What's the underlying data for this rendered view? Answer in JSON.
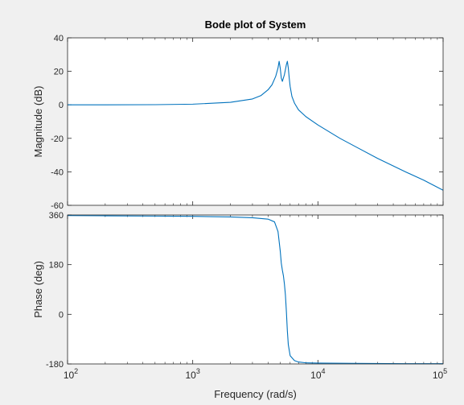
{
  "chart_data": [
    {
      "type": "line",
      "title": "Bode plot of System",
      "xlabel": "",
      "ylabel": "Magnitude (dB)",
      "xscale": "log",
      "xlim": [
        100,
        100000
      ],
      "ylim": [
        -60,
        40
      ],
      "yticks": [
        -60,
        -40,
        -20,
        0,
        20,
        40
      ],
      "grid": false,
      "line_color": "#0072bd",
      "series": [
        {
          "x": [
            100,
            200,
            500,
            1000,
            2000,
            3000,
            3500,
            4000,
            4300,
            4600,
            4800,
            4900,
            5000,
            5100,
            5200,
            5400,
            5600,
            5700,
            5800,
            5900,
            6000,
            6200,
            6500,
            7000,
            8000,
            10000,
            15000,
            20000,
            30000,
            50000,
            70000,
            100000
          ],
          "y": [
            0,
            0,
            0.1,
            0.4,
            1.5,
            3.5,
            5.5,
            9,
            12,
            17,
            22,
            26,
            22,
            16,
            14,
            18,
            24,
            26,
            22,
            16,
            11,
            5,
            1,
            -3,
            -7,
            -12,
            -20,
            -25,
            -32,
            -40,
            -45,
            -51
          ]
        }
      ]
    },
    {
      "type": "line",
      "title": "",
      "xlabel": "Frequency  (rad/s)",
      "ylabel": "Phase (deg)",
      "xscale": "log",
      "xlim": [
        100,
        100000
      ],
      "ylim": [
        -180,
        360
      ],
      "yticks": [
        -180,
        0,
        180,
        360
      ],
      "xticks": [
        "10",
        "10",
        "10",
        "10"
      ],
      "xtick_exponents": [
        "2",
        "3",
        "4",
        "5"
      ],
      "grid": false,
      "line_color": "#0072bd",
      "series": [
        {
          "x": [
            100,
            200,
            500,
            1000,
            2000,
            3000,
            4000,
            4500,
            4800,
            5000,
            5100,
            5200,
            5300,
            5400,
            5500,
            5600,
            5700,
            5800,
            6000,
            6500,
            7000,
            8000,
            10000,
            20000,
            50000,
            100000
          ],
          "y": [
            358,
            357,
            356,
            355,
            353,
            350,
            345,
            335,
            300,
            230,
            185,
            160,
            140,
            110,
            70,
            10,
            -60,
            -110,
            -150,
            -168,
            -173,
            -176,
            -177,
            -178,
            -179,
            -179
          ]
        }
      ]
    }
  ]
}
